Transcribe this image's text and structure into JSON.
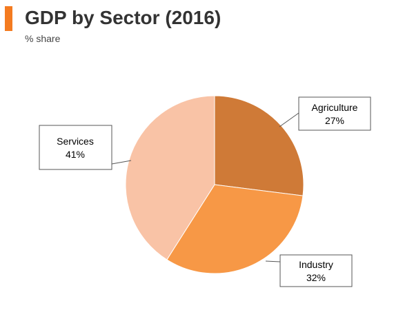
{
  "header": {
    "title": "GDP by Sector (2016)",
    "subtitle": "% share",
    "accent_color": "#f47b20"
  },
  "chart_data": {
    "type": "pie",
    "title": "GDP by Sector (2016)",
    "subtitle": "% share",
    "unit": "%",
    "start_angle_deg": 0,
    "direction": "clockwise",
    "slices": [
      {
        "label": "Agriculture",
        "value": 27,
        "value_label": "27%",
        "color": "#cf7a37"
      },
      {
        "label": "Industry",
        "value": 32,
        "value_label": "32%",
        "color": "#f79846"
      },
      {
        "label": "Services",
        "value": 41,
        "value_label": "41%",
        "color": "#f9c3a6"
      }
    ]
  }
}
